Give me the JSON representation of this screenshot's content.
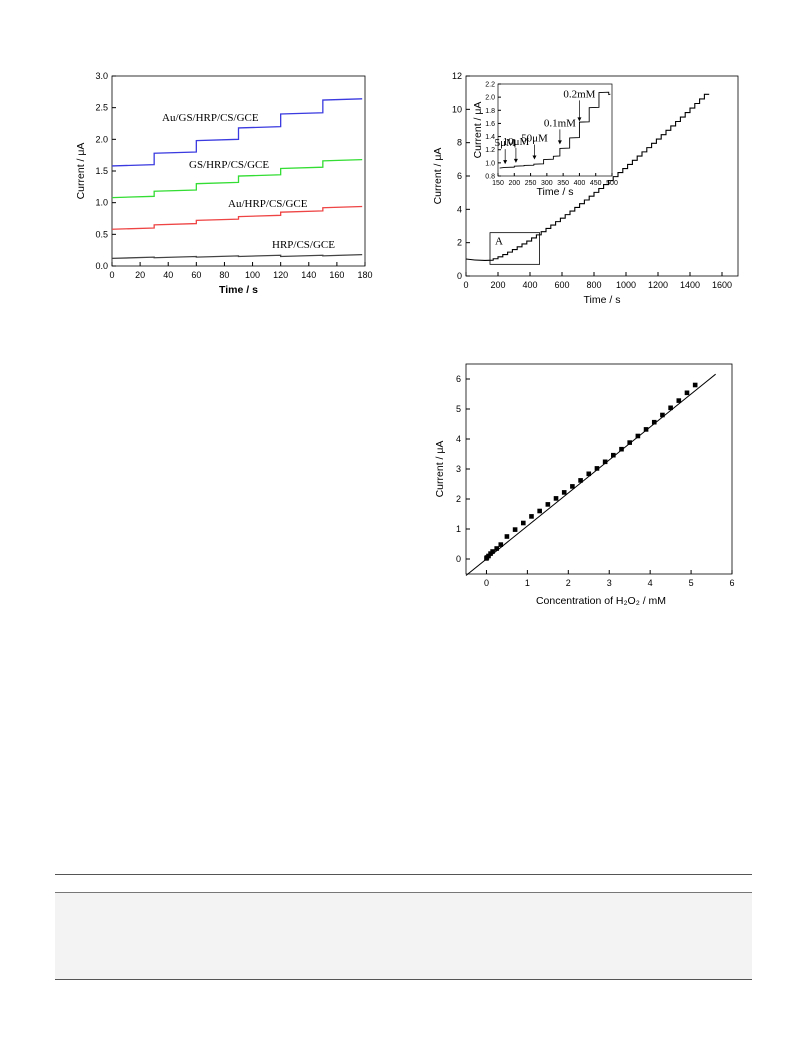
{
  "chart_data": [
    {
      "type": "line",
      "xlabel": "Time / s",
      "ylabel": "Current / μA",
      "xlim": [
        0,
        180
      ],
      "ylim": [
        0.0,
        3.0
      ],
      "xticks": [
        "0",
        "20",
        "40",
        "60",
        "80",
        "100",
        "120",
        "140",
        "160",
        "180"
      ],
      "yticks": [
        "0.0",
        "0.5",
        "1.0",
        "1.5",
        "2.0",
        "2.5",
        "3.0"
      ],
      "step_times": [
        30,
        60,
        90,
        120,
        150
      ],
      "series": [
        {
          "name": "Au/GS/HRP/CS/GCE",
          "color": "#3a3ae0",
          "levels": [
            1.58,
            1.78,
            1.98,
            2.18,
            2.4,
            2.62
          ]
        },
        {
          "name": "GS/HRP/CS/GCE",
          "color": "#33dd33",
          "levels": [
            1.08,
            1.18,
            1.3,
            1.42,
            1.54,
            1.66
          ]
        },
        {
          "name": "Au/HRP/CS/GCE",
          "color": "#ee4444",
          "levels": [
            0.58,
            0.65,
            0.72,
            0.78,
            0.85,
            0.92
          ]
        },
        {
          "name": "HRP/CS/GCE",
          "color": "#444444",
          "levels": [
            0.12,
            0.13,
            0.14,
            0.15,
            0.15,
            0.16
          ]
        }
      ]
    },
    {
      "type": "line",
      "xlabel": "Time / s",
      "ylabel": "Current / μA",
      "xlim": [
        0,
        1700
      ],
      "ylim": [
        0,
        12
      ],
      "xticks": [
        "0",
        "200",
        "400",
        "600",
        "800",
        "1000",
        "1200",
        "1400",
        "1600"
      ],
      "yticks": [
        "0",
        "2",
        "4",
        "6",
        "8",
        "10",
        "12"
      ],
      "box_label": "A",
      "box_range": {
        "x": [
          150,
          460
        ],
        "y": [
          0.7,
          2.6
        ]
      },
      "series": [
        {
          "name": "",
          "start_time": 170,
          "step_interval": 30,
          "step_count": 45,
          "end_time": 1530,
          "baseline": 0.95,
          "final": 10.9
        }
      ],
      "inset": {
        "xlabel": "Time / s",
        "ylabel": "Current / μA",
        "xlim": [
          150,
          500
        ],
        "ylim": [
          0.8,
          2.2
        ],
        "xticks": [
          "150",
          "200",
          "250",
          "300",
          "350",
          "400",
          "450",
          "500"
        ],
        "yticks": [
          "0.8",
          "1.0",
          "1.2",
          "1.4",
          "1.6",
          "1.8",
          "2.0",
          "2.2"
        ],
        "annotations": [
          {
            "text": "5μM",
            "x": 172,
            "y": 0.95
          },
          {
            "text": "10μM",
            "x": 205,
            "y": 0.97
          },
          {
            "text": "50μM",
            "x": 262,
            "y": 1.02
          },
          {
            "text": "0.1mM",
            "x": 340,
            "y": 1.25
          },
          {
            "text": "0.2mM",
            "x": 400,
            "y": 1.6
          }
        ],
        "steps": [
          {
            "t": 170,
            "i": 0.93
          },
          {
            "t": 200,
            "i": 0.95
          },
          {
            "t": 230,
            "i": 0.96
          },
          {
            "t": 260,
            "i": 0.98
          },
          {
            "t": 290,
            "i": 1.05
          },
          {
            "t": 320,
            "i": 1.1
          },
          {
            "t": 340,
            "i": 1.22
          },
          {
            "t": 370,
            "i": 1.38
          },
          {
            "t": 400,
            "i": 1.62
          },
          {
            "t": 430,
            "i": 1.84
          },
          {
            "t": 460,
            "i": 2.07
          },
          {
            "t": 490,
            "i": 2.04
          }
        ]
      }
    },
    {
      "type": "scatter",
      "xlabel": "Concentration of H₂O₂ / mM",
      "ylabel": "Current / μA",
      "xlim": [
        -0.5,
        6
      ],
      "ylim": [
        -0.5,
        6.5
      ],
      "xticks": [
        "0",
        "1",
        "2",
        "3",
        "4",
        "5",
        "6"
      ],
      "yticks": [
        "0",
        "1",
        "2",
        "3",
        "4",
        "5",
        "6"
      ],
      "points": [
        [
          0.0,
          0.02
        ],
        [
          0.01,
          0.05
        ],
        [
          0.05,
          0.1
        ],
        [
          0.1,
          0.18
        ],
        [
          0.15,
          0.25
        ],
        [
          0.25,
          0.35
        ],
        [
          0.35,
          0.48
        ],
        [
          0.5,
          0.75
        ],
        [
          0.7,
          0.98
        ],
        [
          0.9,
          1.2
        ],
        [
          1.1,
          1.42
        ],
        [
          1.3,
          1.6
        ],
        [
          1.5,
          1.82
        ],
        [
          1.7,
          2.02
        ],
        [
          1.9,
          2.22
        ],
        [
          2.1,
          2.42
        ],
        [
          2.3,
          2.62
        ],
        [
          2.5,
          2.84
        ],
        [
          2.7,
          3.02
        ],
        [
          2.9,
          3.24
        ],
        [
          3.1,
          3.46
        ],
        [
          3.3,
          3.66
        ],
        [
          3.5,
          3.88
        ],
        [
          3.7,
          4.1
        ],
        [
          3.9,
          4.32
        ],
        [
          4.1,
          4.56
        ],
        [
          4.3,
          4.8
        ],
        [
          4.5,
          5.04
        ],
        [
          4.7,
          5.28
        ],
        [
          4.9,
          5.54
        ],
        [
          5.1,
          5.8
        ]
      ],
      "fit": {
        "slope": 1.1,
        "intercept": 0.0,
        "x_range": [
          -0.5,
          5.6
        ]
      }
    }
  ]
}
